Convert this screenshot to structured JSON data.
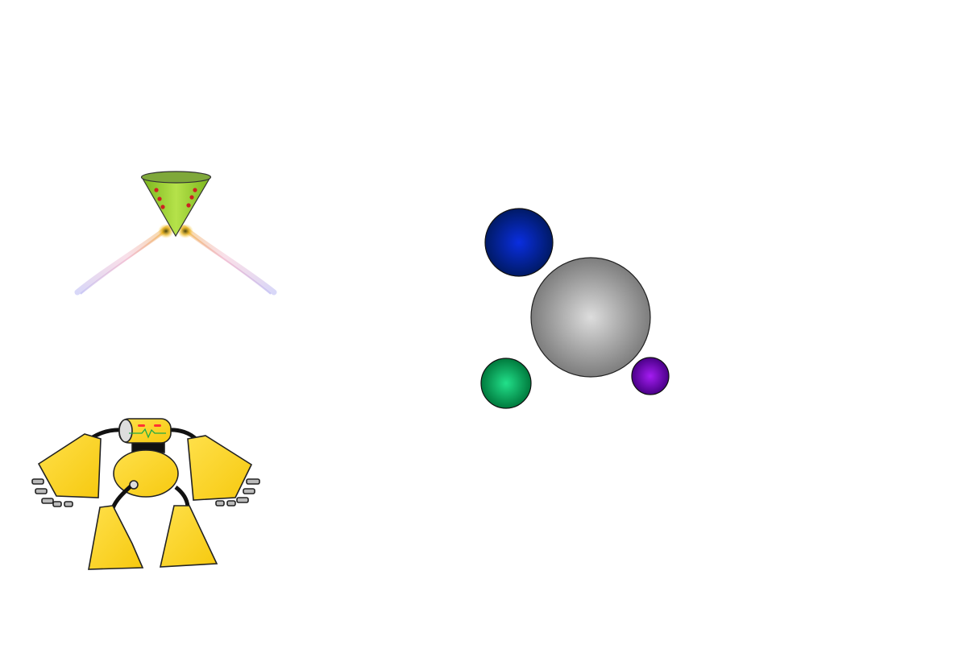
{
  "scene": {
    "background": "#ffffff"
  },
  "player_ship": {
    "icon": "cone-ship-icon",
    "body_color": "#99cc22",
    "rim_color": "#7fa83a",
    "dot_color": "#cc2222",
    "thruster_trail_colors": [
      "#f2b33b",
      "#e88fb2",
      "#a7a5f0"
    ]
  },
  "planetary_system": {
    "planets": [
      {
        "name": "central-planet",
        "color": "#999999"
      },
      {
        "name": "blue-planet",
        "color": "#002299"
      },
      {
        "name": "green-planet",
        "color": "#00aa55"
      },
      {
        "name": "purple-planet",
        "color": "#7700cc"
      }
    ]
  },
  "robot": {
    "icon": "yellow-robot-icon",
    "body_color": "#ffee22",
    "eye_color": "#ff3333",
    "heartbeat_color": "#22aa44",
    "joint_color": "#111111",
    "claw_color": "#bbbbbb"
  }
}
